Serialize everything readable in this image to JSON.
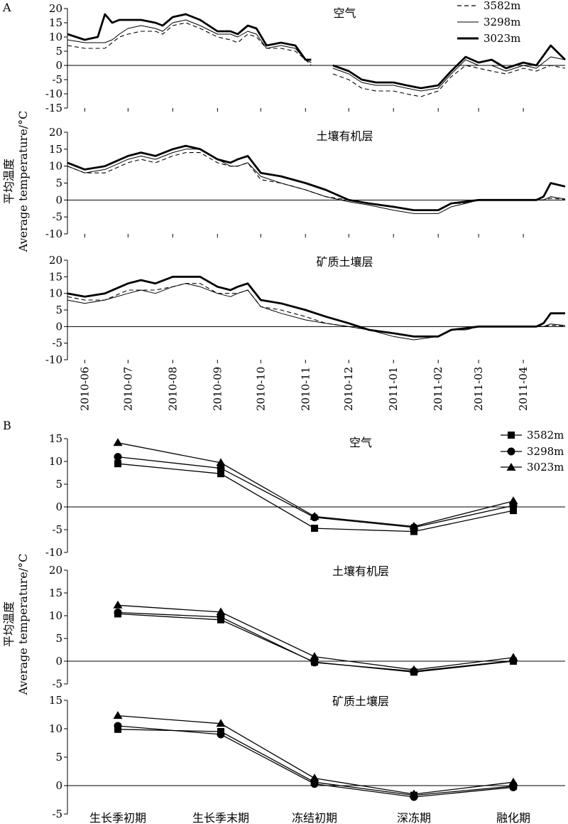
{
  "figure": {
    "panel_a_letter": "A",
    "panel_b_letter": "B",
    "ylabel_cn": "平均温度",
    "ylabel_en": "Average temperature/°C"
  },
  "legend_labels": [
    "3582m",
    "3298m",
    "3023m"
  ],
  "chart_data": [
    {
      "type": "line",
      "panel": "A",
      "title": "空气",
      "x_ticks": [
        "2010-06",
        "2010-07",
        "2010-08",
        "2010-09",
        "2010-10",
        "2010-11",
        "2010-12",
        "2011-01",
        "2011-02",
        "2011-03",
        "2011-04"
      ],
      "xlim": [
        "2010-05-20",
        "2011-04-30"
      ],
      "ylim": [
        -15,
        20
      ],
      "yticks": [
        -15,
        -10,
        -5,
        0,
        5,
        10,
        15,
        20
      ],
      "x_dates": [
        "2010-05-20",
        "2010-06-01",
        "2010-06-10",
        "2010-06-15",
        "2010-06-20",
        "2010-06-25",
        "2010-07-01",
        "2010-07-10",
        "2010-07-20",
        "2010-07-25",
        "2010-08-01",
        "2010-08-10",
        "2010-08-15",
        "2010-08-20",
        "2010-09-01",
        "2010-09-10",
        "2010-09-15",
        "2010-09-22",
        "2010-09-28",
        "2010-10-05",
        "2010-10-15",
        "2010-10-25",
        "2010-11-01",
        "2010-11-05",
        "2010-11-15",
        "2010-11-20",
        "2010-12-01",
        "2010-12-10",
        "2010-12-20",
        "2011-01-01",
        "2011-01-10",
        "2011-01-20",
        "2011-02-01",
        "2011-02-10",
        "2011-02-20",
        "2011-03-01",
        "2011-03-10",
        "2011-03-20",
        "2011-04-01",
        "2011-04-10",
        "2011-04-20",
        "2011-04-30"
      ],
      "series": [
        {
          "name": "3582m",
          "style": "dashed",
          "values": [
            7,
            6,
            6,
            6,
            8,
            10,
            11,
            12,
            12,
            11,
            14,
            15,
            14,
            13,
            10,
            9,
            8,
            11,
            10,
            6,
            6,
            5,
            2,
            0,
            null,
            -3,
            -5,
            -8,
            -9,
            -9,
            -10,
            -11,
            -9,
            -4,
            0,
            -1,
            -2,
            -3,
            -1,
            -2,
            0,
            -1
          ]
        },
        {
          "name": "3298m",
          "style": "thin",
          "values": [
            9,
            8,
            8,
            8,
            9,
            11,
            13,
            14,
            13,
            12,
            15,
            16,
            15,
            14,
            11,
            11,
            10,
            12,
            11,
            6,
            7,
            6,
            2,
            1,
            null,
            -1,
            -3,
            -6,
            -7,
            -7,
            -8,
            -9,
            -8,
            -3,
            2,
            0,
            0,
            -2,
            0,
            -1,
            3,
            2
          ]
        },
        {
          "name": "3023m",
          "style": "thick",
          "values": [
            11,
            9,
            10,
            18,
            15,
            16,
            16,
            16,
            15,
            14,
            17,
            18,
            17,
            16,
            12,
            12,
            11,
            14,
            13,
            7,
            8,
            7,
            2,
            2,
            null,
            0,
            -2,
            -5,
            -6,
            -6,
            -7,
            -8,
            -7,
            -2,
            3,
            1,
            2,
            -1,
            1,
            0,
            7,
            2
          ]
        }
      ]
    },
    {
      "type": "line",
      "panel": "A",
      "title": "土壤有机层",
      "ylim": [
        -10,
        20
      ],
      "yticks": [
        -10,
        -5,
        0,
        5,
        10,
        15,
        20
      ],
      "x_dates": [
        "2010-05-20",
        "2010-06-01",
        "2010-06-15",
        "2010-07-01",
        "2010-07-10",
        "2010-07-20",
        "2010-08-01",
        "2010-08-10",
        "2010-08-20",
        "2010-09-01",
        "2010-09-10",
        "2010-09-15",
        "2010-09-22",
        "2010-10-01",
        "2010-10-15",
        "2010-11-01",
        "2010-11-15",
        "2010-12-01",
        "2010-12-15",
        "2011-01-01",
        "2011-01-15",
        "2011-02-01",
        "2011-02-10",
        "2011-02-20",
        "2011-03-01",
        "2011-03-15",
        "2011-04-01",
        "2011-04-10",
        "2011-04-15",
        "2011-04-20",
        "2011-04-30"
      ],
      "series": [
        {
          "name": "3582m",
          "style": "dashed",
          "values": [
            10,
            8,
            8,
            11,
            12,
            11,
            13,
            14,
            14,
            11,
            10,
            10,
            11,
            6,
            5,
            3,
            1,
            0,
            -1,
            -2,
            -3,
            -3,
            -1,
            -1,
            0,
            0,
            0,
            0,
            0,
            0.5,
            0.2
          ]
        },
        {
          "name": "3298m",
          "style": "thin",
          "values": [
            10,
            8,
            9,
            12,
            13,
            12,
            14,
            15,
            15,
            12,
            10,
            10,
            11,
            7,
            5,
            3,
            1,
            -0.5,
            -1.5,
            -3,
            -4,
            -4,
            -2,
            -1,
            0,
            0,
            0,
            0,
            0,
            1,
            0.3
          ]
        },
        {
          "name": "3023m",
          "style": "thick",
          "values": [
            11,
            9,
            10,
            13,
            14,
            13,
            15,
            16,
            15,
            12,
            11,
            12,
            13,
            8,
            7,
            5,
            3,
            0,
            -1,
            -2,
            -3,
            -3,
            -1,
            -0.5,
            0,
            0,
            0,
            0,
            1,
            5,
            4
          ]
        }
      ]
    },
    {
      "type": "line",
      "panel": "A",
      "title": "矿质土壤层",
      "ylim": [
        -10,
        20
      ],
      "yticks": [
        -10,
        -5,
        0,
        5,
        10,
        15,
        20
      ],
      "x_dates": [
        "2010-05-20",
        "2010-06-01",
        "2010-06-15",
        "2010-07-01",
        "2010-07-10",
        "2010-07-20",
        "2010-08-01",
        "2010-08-10",
        "2010-08-20",
        "2010-09-01",
        "2010-09-10",
        "2010-09-15",
        "2010-09-22",
        "2010-10-01",
        "2010-10-15",
        "2010-11-01",
        "2010-11-15",
        "2010-12-01",
        "2010-12-15",
        "2011-01-01",
        "2011-01-15",
        "2011-02-01",
        "2011-02-10",
        "2011-02-20",
        "2011-03-01",
        "2011-03-15",
        "2011-04-01",
        "2011-04-10",
        "2011-04-15",
        "2011-04-20",
        "2011-04-30"
      ],
      "series": [
        {
          "name": "3582m",
          "style": "dashed",
          "values": [
            9,
            8,
            8,
            11,
            11,
            11,
            12,
            13,
            13,
            10,
            10,
            10,
            11,
            6,
            5,
            3,
            1,
            0,
            -1,
            -2,
            -3,
            -3,
            -1,
            -1,
            0,
            0,
            0,
            0,
            0,
            0.4,
            0.2
          ]
        },
        {
          "name": "3298m",
          "style": "thin",
          "values": [
            8,
            7,
            8,
            10,
            11,
            10,
            12,
            13,
            12,
            10,
            9,
            10,
            11,
            6,
            4,
            2,
            1,
            0,
            -1,
            -3,
            -4,
            -3,
            -1,
            -1,
            0,
            0,
            0,
            0,
            0,
            0.8,
            0.3
          ]
        },
        {
          "name": "3023m",
          "style": "thick",
          "values": [
            10,
            9,
            10,
            13,
            14,
            13,
            15,
            15,
            15,
            12,
            11,
            12,
            13,
            8,
            7,
            5,
            3,
            1,
            -1,
            -2,
            -3,
            -3,
            -1,
            -0.5,
            0,
            0,
            0,
            0,
            1,
            4,
            4
          ]
        }
      ]
    },
    {
      "type": "line",
      "panel": "B",
      "title": "空气",
      "categories": [
        "生长季初期",
        "生长季末期",
        "冻结初期",
        "深冻期",
        "融化期"
      ],
      "ylim": [
        -10,
        15
      ],
      "yticks": [
        -10,
        -5,
        0,
        5,
        10,
        15
      ],
      "series": [
        {
          "name": "3582m",
          "marker": "square",
          "values": [
            9.5,
            7.3,
            -4.7,
            -5.4,
            -0.8
          ]
        },
        {
          "name": "3298m",
          "marker": "circle",
          "values": [
            11.0,
            8.5,
            -2.3,
            -4.5,
            0.3
          ]
        },
        {
          "name": "3023m",
          "marker": "triangle",
          "values": [
            14.1,
            9.7,
            -2.1,
            -4.3,
            1.3
          ]
        }
      ]
    },
    {
      "type": "line",
      "panel": "B",
      "title": "土壤有机层",
      "categories": [
        "生长季初期",
        "生长季末期",
        "冻结初期",
        "深冻期",
        "融化期"
      ],
      "ylim": [
        -5,
        20
      ],
      "yticks": [
        -5,
        0,
        5,
        10,
        15,
        20
      ],
      "series": [
        {
          "name": "3582m",
          "marker": "square",
          "values": [
            10.4,
            9.1,
            -0.2,
            -2.4,
            0.0
          ]
        },
        {
          "name": "3298m",
          "marker": "circle",
          "values": [
            10.7,
            9.7,
            -0.3,
            -2.2,
            0.1
          ]
        },
        {
          "name": "3023m",
          "marker": "triangle",
          "values": [
            12.3,
            10.8,
            1.0,
            -1.9,
            0.8
          ]
        }
      ]
    },
    {
      "type": "line",
      "panel": "B",
      "title": "矿质土壤层",
      "categories": [
        "生长季初期",
        "生长季末期",
        "冻结初期",
        "深冻期",
        "融化期"
      ],
      "ylim": [
        -5,
        15
      ],
      "yticks": [
        -5,
        0,
        5,
        10,
        15
      ],
      "series": [
        {
          "name": "3582m",
          "marker": "square",
          "values": [
            9.9,
            9.5,
            0.6,
            -1.7,
            -0.1
          ]
        },
        {
          "name": "3298m",
          "marker": "circle",
          "values": [
            10.5,
            9.0,
            0.3,
            -2.0,
            -0.3
          ]
        },
        {
          "name": "3023m",
          "marker": "triangle",
          "values": [
            12.3,
            10.9,
            1.3,
            -1.5,
            0.6
          ]
        }
      ]
    }
  ]
}
